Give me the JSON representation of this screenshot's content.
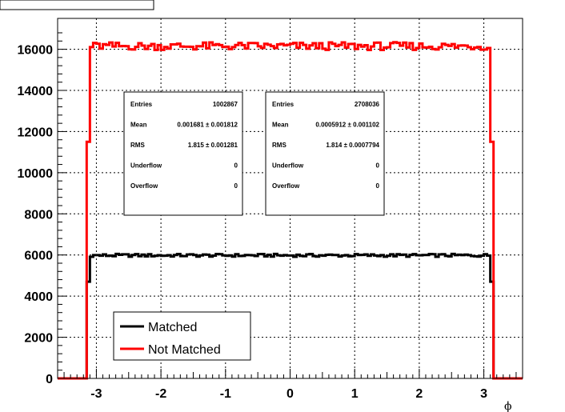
{
  "chart_data": {
    "type": "line",
    "title": "",
    "xlabel": "ϕ",
    "ylabel": "",
    "xlim": [
      -3.6,
      3.6
    ],
    "ylim": [
      0,
      17500
    ],
    "x_ticks": [
      -3,
      -2,
      -1,
      0,
      1,
      2,
      3
    ],
    "x_tick_labels": [
      "-3",
      "-2",
      "-1",
      "0",
      "1",
      "2",
      "3"
    ],
    "y_ticks": [
      0,
      2000,
      4000,
      6000,
      8000,
      10000,
      12000,
      14000,
      16000
    ],
    "y_tick_labels": [
      "0",
      "2000",
      "4000",
      "6000",
      "8000",
      "10000",
      "12000",
      "14000",
      "16000"
    ],
    "grid": true,
    "legend_position": "bottom-left",
    "series": [
      {
        "name": "Matched",
        "color": "#000000",
        "plateau": 5980,
        "edge_lo": -3.14,
        "edge_hi": 3.14,
        "edge_step_value": 4700
      },
      {
        "name": "Not Matched",
        "color": "#ff0000",
        "plateau": 16150,
        "edge_lo": -3.14,
        "edge_hi": 3.14,
        "edge_step_value": 11500
      }
    ],
    "stats_boxes": [
      {
        "rows": [
          {
            "label": "Entries",
            "value": "1002867"
          },
          {
            "label": "Mean",
            "value": "0.001681 ± 0.001812"
          },
          {
            "label": "RMS",
            "value": "1.815 ± 0.001281"
          },
          {
            "label": "Underflow",
            "value": "0"
          },
          {
            "label": "Overflow",
            "value": "0"
          }
        ]
      },
      {
        "rows": [
          {
            "label": "Entries",
            "value": "2708036"
          },
          {
            "label": "Mean",
            "value": "0.0005912 ± 0.001102"
          },
          {
            "label": "RMS",
            "value": "1.814 ± 0.0007794"
          },
          {
            "label": "Underflow",
            "value": "0"
          },
          {
            "label": "Overflow",
            "value": "0"
          }
        ]
      }
    ]
  }
}
